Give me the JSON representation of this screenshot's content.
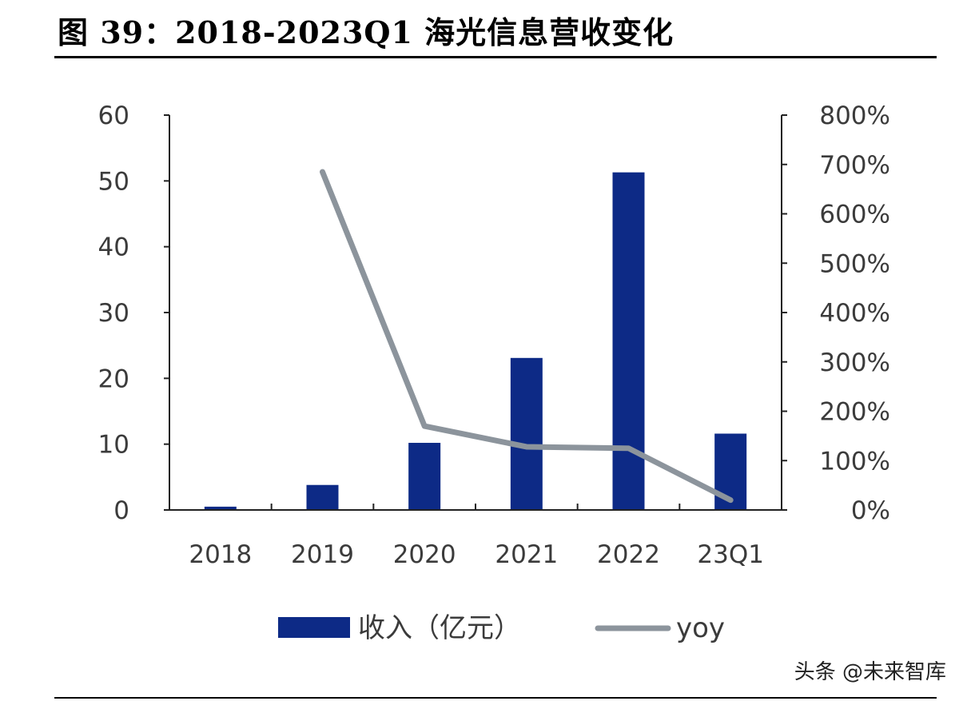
{
  "title": "图 39：2018-2023Q1 海光信息营收变化",
  "watermark": "头条 @未来智库",
  "colors": {
    "bar": "#0d2a86",
    "line": "#8c949c",
    "axis": "#222222",
    "text": "#3b3b3b"
  },
  "chart_data": {
    "type": "bar",
    "categories": [
      "2018",
      "2019",
      "2020",
      "2021",
      "2022",
      "23Q1"
    ],
    "series": [
      {
        "name": "收入（亿元）",
        "type": "bar",
        "axis": "left",
        "values": [
          0.5,
          3.8,
          10.2,
          23.1,
          51.3,
          11.6
        ]
      },
      {
        "name": "yoy",
        "type": "line",
        "axis": "right",
        "values": [
          null,
          685,
          170,
          128,
          125,
          20
        ]
      }
    ],
    "y_left": {
      "min": 0,
      "max": 60,
      "ticks": [
        "0",
        "10",
        "20",
        "30",
        "40",
        "50",
        "60"
      ]
    },
    "y_right": {
      "min": 0,
      "max": 800,
      "ticks": [
        "0%",
        "100%",
        "200%",
        "300%",
        "400%",
        "500%",
        "600%",
        "700%",
        "800%"
      ]
    },
    "legend": {
      "position": "bottom",
      "items": [
        "收入（亿元）",
        "yoy"
      ]
    },
    "grid": false
  }
}
